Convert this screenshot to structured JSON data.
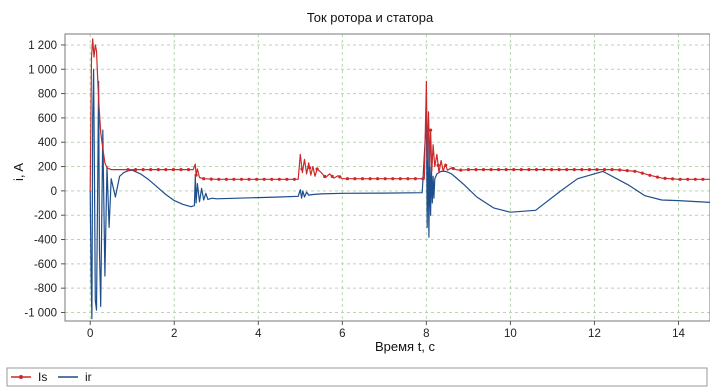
{
  "chart_data": {
    "type": "line",
    "title": "Ток ротора и статора",
    "xlabel": "Время t, с",
    "ylabel": "i, A",
    "xlim": [
      -0.6,
      14.75
    ],
    "ylim": [
      -1070,
      1290
    ],
    "x_ticks": [
      0,
      2,
      4,
      6,
      8,
      10,
      12,
      14
    ],
    "x_tick_labels": [
      "0",
      "2",
      "4",
      "6",
      "8",
      "10",
      "12",
      "14"
    ],
    "y_ticks": [
      1200,
      1000,
      800,
      600,
      400,
      200,
      0,
      -200,
      -400,
      -600,
      -800,
      -1000
    ],
    "y_tick_labels": [
      "1 200",
      "1 000",
      "800",
      "600",
      "400",
      "200",
      "0",
      "-200",
      "-400",
      "-600",
      "-800",
      "-1 000"
    ],
    "grid": true,
    "legend_position": "bottom-left",
    "colors": {
      "Is": "#cc2a2a",
      "ir": "#1f4e8c",
      "grid": "#b9d5b3"
    },
    "series": [
      {
        "name": "Is",
        "marker": "dot",
        "x": [
          0,
          0.03,
          0.06,
          0.09,
          0.12,
          0.15,
          0.18,
          0.21,
          0.25,
          0.3,
          0.35,
          0.4,
          0.5,
          0.7,
          1.0,
          1.5,
          2.0,
          2.45,
          2.5,
          2.52,
          2.55,
          2.6,
          2.7,
          3,
          4,
          4.95,
          5.0,
          5.05,
          5.1,
          5.15,
          5.2,
          5.25,
          5.3,
          5.35,
          5.4,
          5.5,
          5.6,
          5.7,
          5.8,
          5.9,
          6.0,
          6.3,
          6.6,
          7.0,
          7.5,
          7.95,
          8.0,
          8.02,
          8.05,
          8.08,
          8.1,
          8.13,
          8.16,
          8.2,
          8.25,
          8.3,
          8.35,
          8.4,
          8.45,
          8.5,
          8.6,
          8.7,
          8.8,
          9.0,
          10,
          11,
          12,
          12.5,
          13,
          13.3,
          13.6,
          14,
          14.75
        ],
        "y": [
          0,
          1100,
          1250,
          1100,
          1200,
          1150,
          900,
          700,
          480,
          350,
          230,
          190,
          175,
          175,
          175,
          175,
          175,
          175,
          220,
          130,
          180,
          110,
          100,
          95,
          95,
          95,
          300,
          150,
          260,
          140,
          230,
          130,
          200,
          120,
          180,
          150,
          110,
          140,
          105,
          125,
          100,
          100,
          100,
          100,
          100,
          100,
          900,
          250,
          650,
          200,
          500,
          160,
          380,
          200,
          300,
          150,
          250,
          160,
          220,
          170,
          190,
          175,
          170,
          175,
          175,
          175,
          175,
          175,
          160,
          130,
          105,
          95,
          95
        ]
      },
      {
        "name": "ir",
        "marker": "none",
        "x": [
          0,
          0.02,
          0.04,
          0.06,
          0.08,
          0.1,
          0.12,
          0.15,
          0.18,
          0.2,
          0.22,
          0.25,
          0.3,
          0.35,
          0.4,
          0.45,
          0.5,
          0.6,
          0.7,
          0.8,
          0.9,
          1.0,
          1.2,
          1.4,
          1.6,
          1.8,
          2.0,
          2.2,
          2.4,
          2.48,
          2.5,
          2.52,
          2.55,
          2.6,
          2.65,
          2.7,
          2.75,
          2.8,
          2.9,
          3.0,
          3.5,
          4.0,
          4.5,
          4.95,
          5.0,
          5.03,
          5.06,
          5.1,
          5.15,
          5.2,
          5.3,
          5.5,
          6.0,
          7.0,
          7.9,
          8.0,
          8.02,
          8.04,
          8.06,
          8.08,
          8.1,
          8.12,
          8.14,
          8.16,
          8.18,
          8.2,
          8.25,
          8.3,
          8.35,
          8.4,
          8.45,
          8.5,
          8.6,
          8.7,
          8.9,
          9.2,
          9.6,
          10.0,
          10.6,
          11.2,
          11.6,
          12.2,
          12.8,
          13.2,
          13.6,
          14.0,
          14.75
        ],
        "y": [
          0,
          -700,
          -1050,
          600,
          1000,
          200,
          -900,
          -980,
          150,
          900,
          -500,
          -950,
          500,
          -700,
          200,
          -300,
          100,
          -50,
          120,
          150,
          165,
          170,
          140,
          90,
          30,
          -30,
          -80,
          -110,
          -130,
          -120,
          120,
          -100,
          60,
          -90,
          20,
          -75,
          -20,
          -70,
          -60,
          -65,
          -60,
          -55,
          -50,
          -45,
          10,
          -60,
          0,
          -50,
          -10,
          -35,
          -30,
          -25,
          -20,
          -18,
          -15,
          600,
          -300,
          450,
          -380,
          300,
          -200,
          200,
          -100,
          120,
          -60,
          100,
          140,
          150,
          160,
          160,
          160,
          155,
          140,
          110,
          50,
          -50,
          -140,
          -175,
          -160,
          0,
          100,
          160,
          50,
          -40,
          -75,
          -80,
          -95
        ]
      }
    ]
  }
}
